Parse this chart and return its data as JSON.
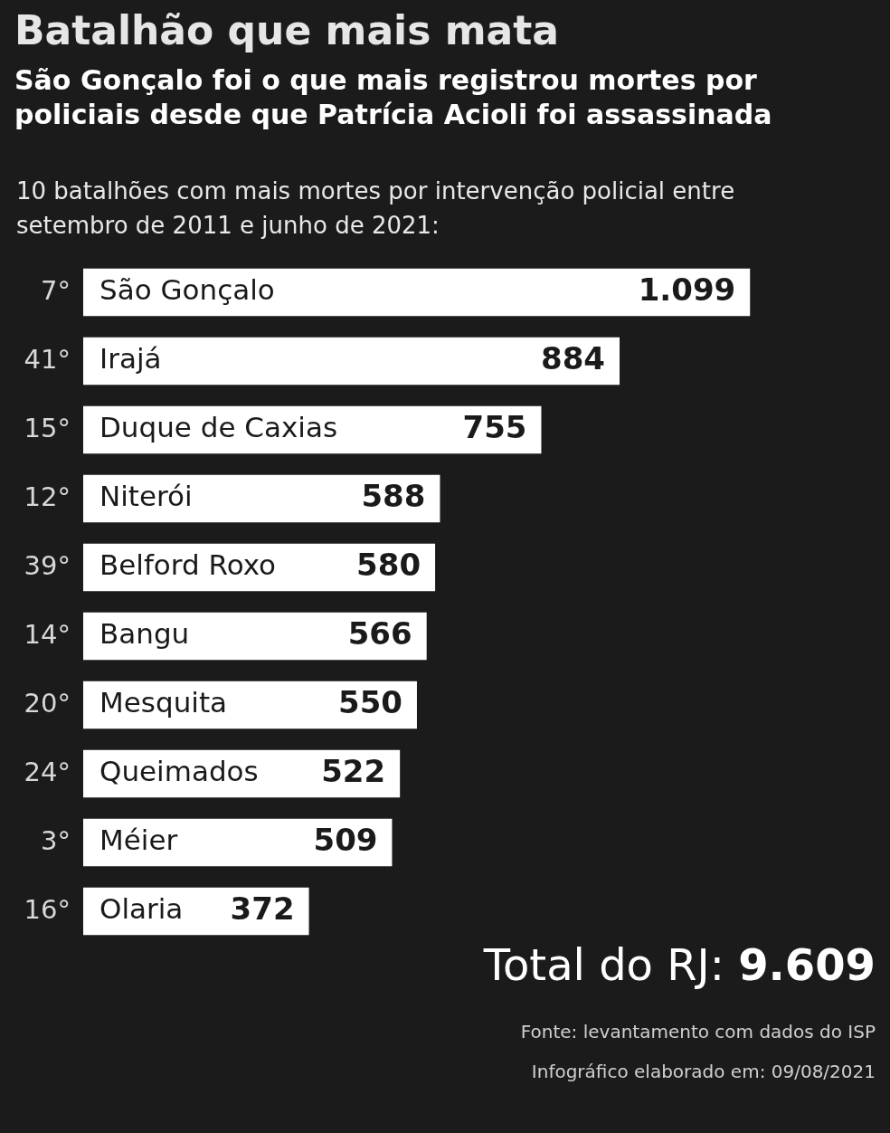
{
  "chart_data": {
    "type": "bar",
    "orientation": "horizontal",
    "title": "Batalhão que mais mata",
    "subtitle": "São Gonçalo foi o que mais registrou mortes por policiais desde que Patrícia Acioli foi assassinada",
    "xlabel": "10 batalhões com mais mortes por intervenção policial entre setembro de 2011 e junho de 2021:",
    "categories": [
      "São Gonçalo",
      "Irajá",
      "Duque de Caxias",
      "Niterói",
      "Belford Roxo",
      "Bangu",
      "Mesquita",
      "Queimados",
      "Méier",
      "Olaria"
    ],
    "values": [
      1099,
      884,
      755,
      588,
      580,
      566,
      550,
      522,
      509,
      372
    ],
    "value_labels": [
      "1.099",
      "884",
      "755",
      "588",
      "580",
      "566",
      "550",
      "522",
      "509",
      "372"
    ],
    "color": "#ffffff",
    "annotations": [
      "7°",
      "41°",
      "15°",
      "12°",
      "39°",
      "14°",
      "20°",
      "24°",
      "3°",
      "16°",
      "Total do RJ: 9.609",
      "Fonte: levantamento com dados do ISP",
      "Infográfico elaborado em: 09/08/2021"
    ]
  }
}
